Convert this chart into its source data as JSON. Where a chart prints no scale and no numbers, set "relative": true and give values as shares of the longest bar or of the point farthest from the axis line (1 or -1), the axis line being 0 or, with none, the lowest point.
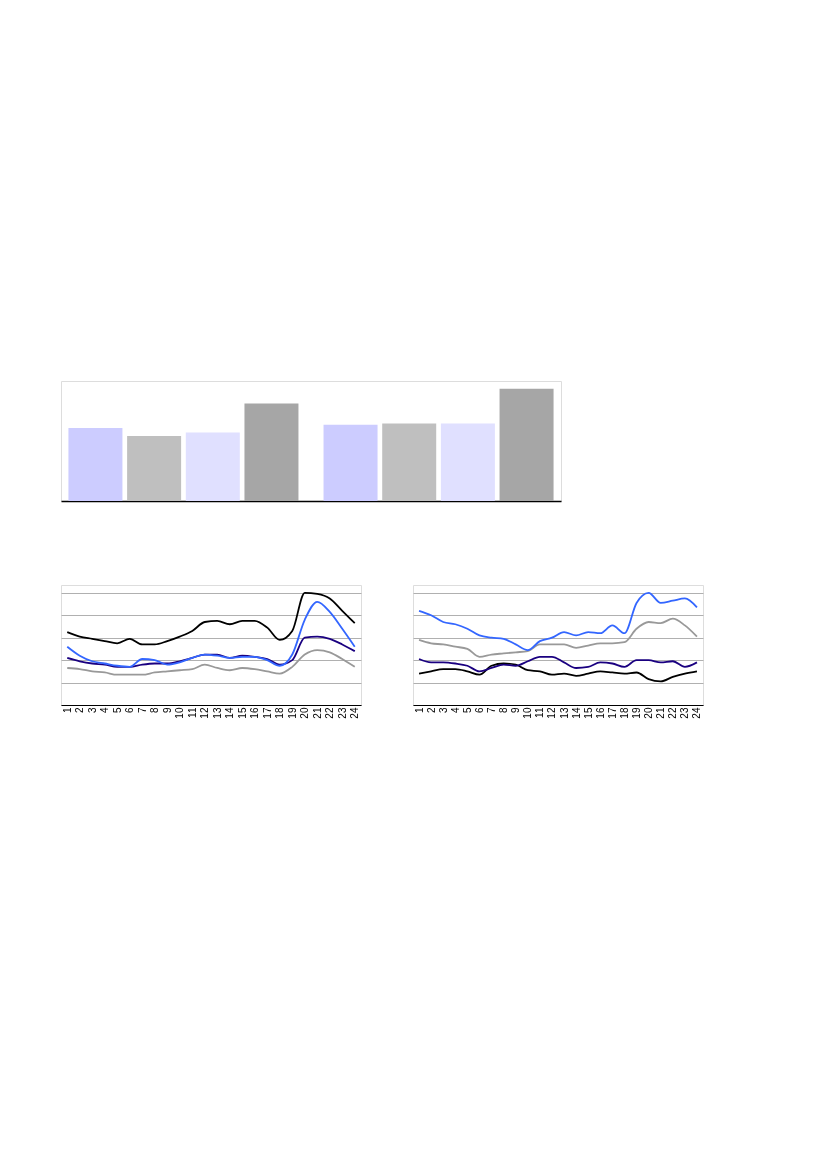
{
  "chart_data": [
    {
      "type": "bar",
      "relative": true,
      "categories": [
        null,
        null
      ],
      "series": [
        {
          "color": "#ccccff",
          "values": [
            0.65,
            0.68
          ]
        },
        {
          "color": "#bfbfbf",
          "values": [
            0.58,
            0.69
          ]
        },
        {
          "color": "#e0e0ff",
          "values": [
            0.61,
            0.69
          ]
        },
        {
          "color": "#a6a6a6",
          "values": [
            0.87,
            1.0
          ]
        }
      ]
    },
    {
      "type": "line",
      "relative": true,
      "grid": "y",
      "line_style": "solid",
      "tick_labels": "x",
      "categories": [
        "1",
        "2",
        "3",
        "4",
        "5",
        "6",
        "7",
        "8",
        "9",
        "10",
        "11",
        "12",
        "13",
        "14",
        "15",
        "16",
        "17",
        "18",
        "19",
        "20",
        "21",
        "22",
        "23",
        "24"
      ],
      "series": [
        {
          "color": "#000000",
          "values": [
            0.65,
            0.61,
            0.59,
            0.57,
            0.55,
            0.59,
            0.54,
            0.54,
            0.57,
            0.61,
            0.66,
            0.74,
            0.75,
            0.72,
            0.75,
            0.75,
            0.69,
            0.58,
            0.66,
            1.0,
            0.99,
            0.95,
            0.84,
            0.73
          ]
        },
        {
          "color": "#1a0080",
          "values": [
            0.42,
            0.39,
            0.37,
            0.36,
            0.34,
            0.34,
            0.36,
            0.37,
            0.37,
            0.39,
            0.42,
            0.45,
            0.45,
            0.42,
            0.44,
            0.43,
            0.41,
            0.36,
            0.4,
            0.6,
            0.61,
            0.59,
            0.54,
            0.48
          ]
        },
        {
          "color": "#999999",
          "values": [
            0.33,
            0.32,
            0.3,
            0.29,
            0.27,
            0.27,
            0.27,
            0.29,
            0.3,
            0.31,
            0.32,
            0.36,
            0.33,
            0.31,
            0.33,
            0.32,
            0.3,
            0.28,
            0.34,
            0.45,
            0.49,
            0.47,
            0.41,
            0.34
          ]
        },
        {
          "color": "#3366ff",
          "values": [
            0.52,
            0.44,
            0.39,
            0.37,
            0.35,
            0.34,
            0.41,
            0.4,
            0.36,
            0.38,
            0.42,
            0.45,
            0.44,
            0.42,
            0.43,
            0.43,
            0.4,
            0.35,
            0.45,
            0.76,
            0.92,
            0.83,
            0.68,
            0.52
          ]
        }
      ]
    },
    {
      "type": "line",
      "relative": true,
      "grid": "y",
      "line_style": "solid",
      "tick_labels": "x",
      "categories": [
        "1",
        "2",
        "3",
        "4",
        "5",
        "6",
        "7",
        "8",
        "9",
        "10",
        "11",
        "12",
        "13",
        "14",
        "15",
        "16",
        "17",
        "18",
        "19",
        "20",
        "21",
        "22",
        "23",
        "24"
      ],
      "series": [
        {
          "color": "#000000",
          "values": [
            0.28,
            0.3,
            0.32,
            0.32,
            0.3,
            0.27,
            0.35,
            0.37,
            0.36,
            0.31,
            0.3,
            0.27,
            0.28,
            0.26,
            0.28,
            0.3,
            0.29,
            0.28,
            0.29,
            0.23,
            0.21,
            0.25,
            0.28,
            0.3
          ]
        },
        {
          "color": "#1a0080",
          "values": [
            0.41,
            0.38,
            0.38,
            0.37,
            0.35,
            0.3,
            0.33,
            0.36,
            0.35,
            0.39,
            0.43,
            0.43,
            0.38,
            0.33,
            0.34,
            0.38,
            0.37,
            0.34,
            0.4,
            0.4,
            0.38,
            0.39,
            0.34,
            0.38
          ]
        },
        {
          "color": "#999999",
          "values": [
            0.58,
            0.55,
            0.54,
            0.52,
            0.5,
            0.43,
            0.45,
            0.46,
            0.47,
            0.48,
            0.54,
            0.54,
            0.54,
            0.51,
            0.53,
            0.55,
            0.55,
            0.56,
            0.68,
            0.74,
            0.73,
            0.77,
            0.71,
            0.61
          ]
        },
        {
          "color": "#3366ff",
          "values": [
            0.84,
            0.8,
            0.74,
            0.72,
            0.68,
            0.62,
            0.6,
            0.59,
            0.54,
            0.49,
            0.57,
            0.6,
            0.65,
            0.62,
            0.65,
            0.64,
            0.71,
            0.64,
            0.91,
            1.0,
            0.91,
            0.93,
            0.95,
            0.87
          ]
        }
      ]
    }
  ]
}
